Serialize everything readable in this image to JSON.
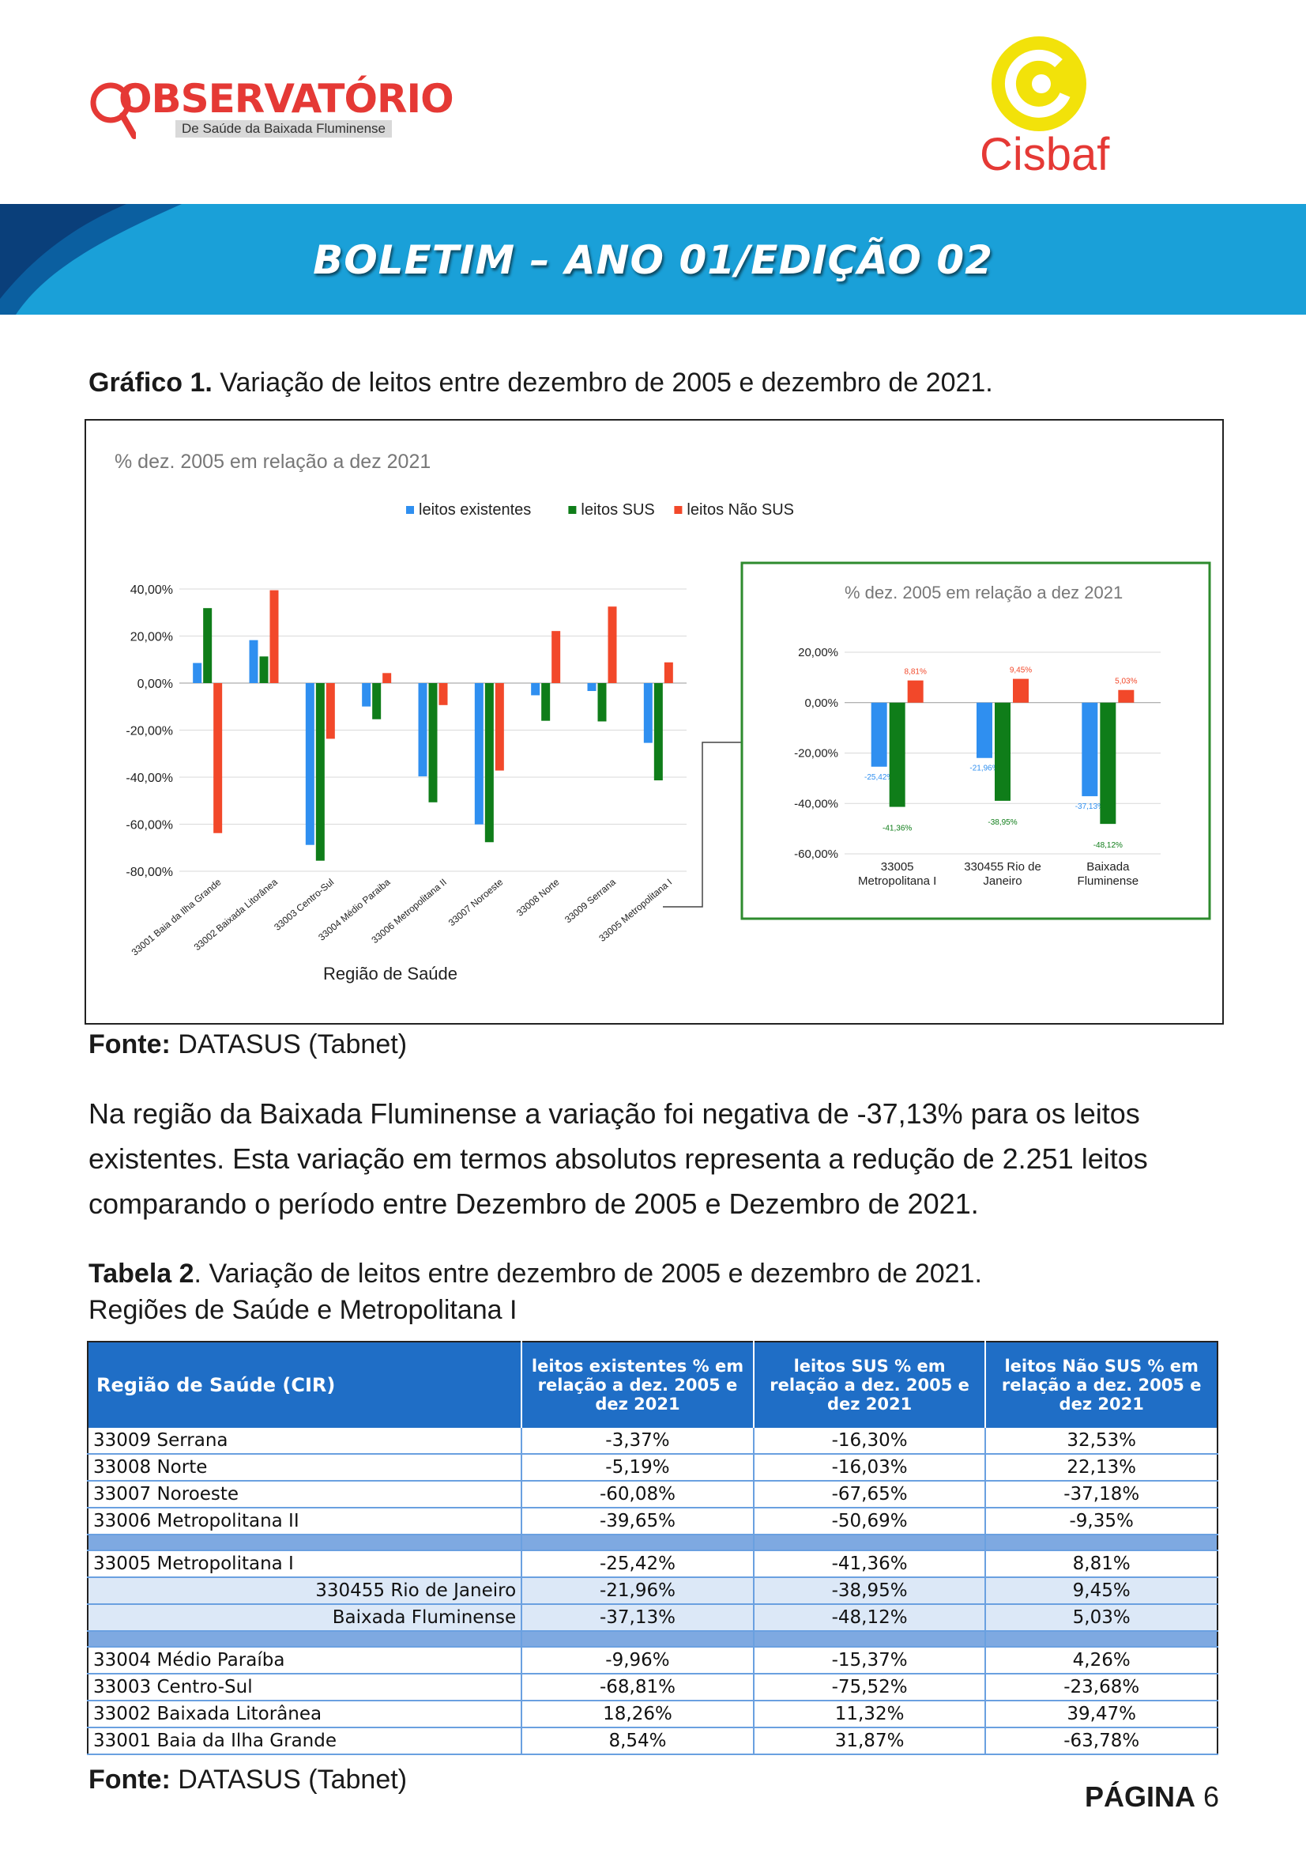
{
  "header": {
    "observatorio_title": "OBSERVATÓRIO",
    "observatorio_subtitle": "De Saúde da Baixada Fluminense",
    "cisbaf_name": "Cisbaf",
    "banner_title": "BOLETIM – ANO 01/EDIÇÃO 02"
  },
  "chart_caption": {
    "label": "Gráfico 1.",
    "text": " Variação de leitos entre dezembro de 2005 e dezembro de 2021."
  },
  "chart_data": [
    {
      "type": "bar",
      "title": "% dez. 2005 em relação a  dez 2021",
      "xlabel": "Região de Saúde",
      "legend_position": "top",
      "categories": [
        "33001 Baia da Ilha Grande",
        "33002 Baixada Litorânea",
        "33003 Centro-Sul",
        "33004 Médio Paraiba",
        "33006 Metropolitana II",
        "33007 Noroeste",
        "33008 Norte",
        "33009 Serrana",
        "33005 Metropolitana I"
      ],
      "ylim": [
        -80,
        40
      ],
      "yticks": [
        "40,00%",
        "20,00%",
        "0,00%",
        "-20,00%",
        "-40,00%",
        "-60,00%",
        "-80,00%"
      ],
      "series": [
        {
          "name": "leitos existentes",
          "color": "#2f8ff0",
          "values": [
            8.54,
            18.26,
            -68.81,
            -9.96,
            -39.65,
            -60.08,
            -5.19,
            -3.37,
            -25.42
          ]
        },
        {
          "name": "leitos SUS",
          "color": "#0f7d19",
          "values": [
            31.87,
            11.32,
            -75.52,
            -15.37,
            -50.69,
            -67.65,
            -16.03,
            -16.3,
            -41.36
          ]
        },
        {
          "name": "leitos Não SUS",
          "color": "#f2482a",
          "values": [
            -63.78,
            39.47,
            -23.68,
            4.26,
            -9.35,
            -37.18,
            22.13,
            32.53,
            8.81
          ]
        }
      ]
    },
    {
      "type": "bar",
      "title": "% dez. 2005 em relação a  dez 2021",
      "categories": [
        [
          "33005",
          "Metropolitana I"
        ],
        [
          "330455 Rio de",
          "Janeiro"
        ],
        [
          "Baixada",
          "Fluminense"
        ]
      ],
      "ylim": [
        -60,
        20
      ],
      "yticks": [
        "20,00%",
        "0,00%",
        "-20,00%",
        "-40,00%",
        "-60,00%"
      ],
      "series": [
        {
          "name": "leitos existentes",
          "color": "#2f8ff0",
          "values": [
            -25.42,
            -21.96,
            -37.13
          ],
          "labels": [
            "-25,42%",
            "-21,96%",
            "-37,13%"
          ]
        },
        {
          "name": "leitos SUS",
          "color": "#0f7d19",
          "values": [
            -41.36,
            -38.95,
            -48.12
          ],
          "labels": [
            "-41,36%",
            "-38,95%",
            "-48,12%"
          ]
        },
        {
          "name": "leitos Não SUS",
          "color": "#f2482a",
          "values": [
            8.81,
            9.45,
            5.03
          ],
          "labels": [
            "8,81%",
            "9,45%",
            "5,03%"
          ]
        }
      ]
    }
  ],
  "chart_source": {
    "label": "Fonte:",
    "text": " DATASUS (Tabnet)"
  },
  "paragraph": "Na região da Baixada Fluminense a variação foi negativa de -37,13% para os leitos existentes. Esta variação em termos absolutos representa a redução de 2.251 leitos comparando o período entre Dezembro de 2005 e Dezembro de 2021.",
  "table_caption": {
    "label": "Tabela 2",
    "text": ". Variação de leitos entre dezembro de 2005 e dezembro de 2021.",
    "line2": "Regiões de Saúde e Metropolitana I"
  },
  "table": {
    "headers": [
      "Região de Saúde (CIR)",
      "leitos existentes % em relação a dez. 2005 e  dez 2021",
      "leitos SUS % em relação a dez. 2005 e  dez 2021",
      "leitos Não SUS % em relação a dez. 2005 e  dez 2021"
    ],
    "group1": [
      [
        "33009 Serrana",
        "-3,37%",
        "-16,30%",
        "32,53%"
      ],
      [
        "33008 Norte",
        "-5,19%",
        "-16,03%",
        "22,13%"
      ],
      [
        "33007 Noroeste",
        "-60,08%",
        "-67,65%",
        "-37,18%"
      ],
      [
        "33006 Metropolitana II",
        "-39,65%",
        "-50,69%",
        "-9,35%"
      ]
    ],
    "group2": [
      [
        "33005 Metropolitana I",
        "-25,42%",
        "-41,36%",
        "8,81%"
      ],
      [
        "330455 Rio de Janeiro",
        "-21,96%",
        "-38,95%",
        "9,45%"
      ],
      [
        "Baixada Fluminense",
        "-37,13%",
        "-48,12%",
        "5,03%"
      ]
    ],
    "group3": [
      [
        "33004 Médio Paraíba",
        "-9,96%",
        "-15,37%",
        "4,26%"
      ],
      [
        "33003 Centro-Sul",
        "-68,81%",
        "-75,52%",
        "-23,68%"
      ],
      [
        "33002 Baixada Litorânea",
        "18,26%",
        "11,32%",
        "39,47%"
      ],
      [
        "33001 Baia da Ilha Grande",
        "8,54%",
        "31,87%",
        "-63,78%"
      ]
    ]
  },
  "table_source": {
    "label": "Fonte:",
    "text": " DATASUS (Tabnet)"
  },
  "footer": {
    "page_label": "PÁGINA",
    "page_number": "6"
  }
}
